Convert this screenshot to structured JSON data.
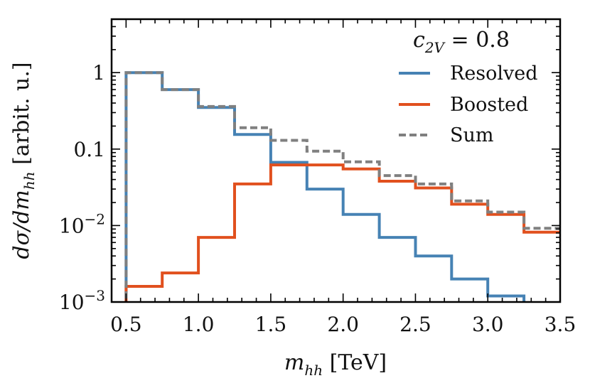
{
  "chart_data": {
    "type": "line",
    "step": true,
    "title": "",
    "xlabel": "m_hh [TeV]",
    "xlabel_main": "m",
    "xlabel_sub": "hh",
    "xlabel_unit": " [TeV]",
    "ylabel": "dσ/dm_hh [arbit. u.]",
    "ylabel_main": "dσ/dm",
    "ylabel_sub": "hh",
    "ylabel_unit": " [arbit. u.]",
    "xlim": [
      0.4,
      3.5
    ],
    "ylim": [
      0.001,
      5
    ],
    "yscale": "log",
    "x_ticks": [
      0.5,
      1.0,
      1.5,
      2.0,
      2.5,
      3.0,
      3.5
    ],
    "x_tick_labels": [
      "0.5",
      "1.0",
      "1.5",
      "2.0",
      "2.5",
      "3.0",
      "3.5"
    ],
    "y_ticks": [
      {
        "value": 1,
        "label": "1"
      },
      {
        "value": 0.1,
        "label": "0.1"
      },
      {
        "value": 0.01,
        "base": "10",
        "exp": "−2"
      },
      {
        "value": 0.001,
        "base": "10",
        "exp": "−3"
      }
    ],
    "annotation": {
      "main": "c",
      "sub": "2V",
      "rest": " = 0.8"
    },
    "bin_edges": [
      0.5,
      0.75,
      1.0,
      1.25,
      1.5,
      1.75,
      2.0,
      2.25,
      2.5,
      2.75,
      3.0,
      3.25,
      3.5
    ],
    "series": [
      {
        "name": "Resolved",
        "color": "#4682b4",
        "dash": "solid",
        "values": [
          1.0,
          0.6,
          0.35,
          0.155,
          0.067,
          0.03,
          0.014,
          0.007,
          0.004,
          0.002,
          0.0012,
          0.0009
        ]
      },
      {
        "name": "Boosted",
        "color": "#e1501e",
        "dash": "solid",
        "values": [
          0.0016,
          0.0024,
          0.007,
          0.035,
          0.062,
          0.062,
          0.055,
          0.038,
          0.031,
          0.019,
          0.014,
          0.0082
        ]
      },
      {
        "name": "Sum",
        "color": "#808080",
        "dash": "dashed",
        "values": [
          1.0,
          0.6,
          0.36,
          0.19,
          0.13,
          0.094,
          0.068,
          0.045,
          0.035,
          0.021,
          0.015,
          0.0092
        ]
      }
    ],
    "legend": [
      "Resolved",
      "Boosted",
      "Sum"
    ],
    "legend_position": "top-right",
    "grid": false
  }
}
